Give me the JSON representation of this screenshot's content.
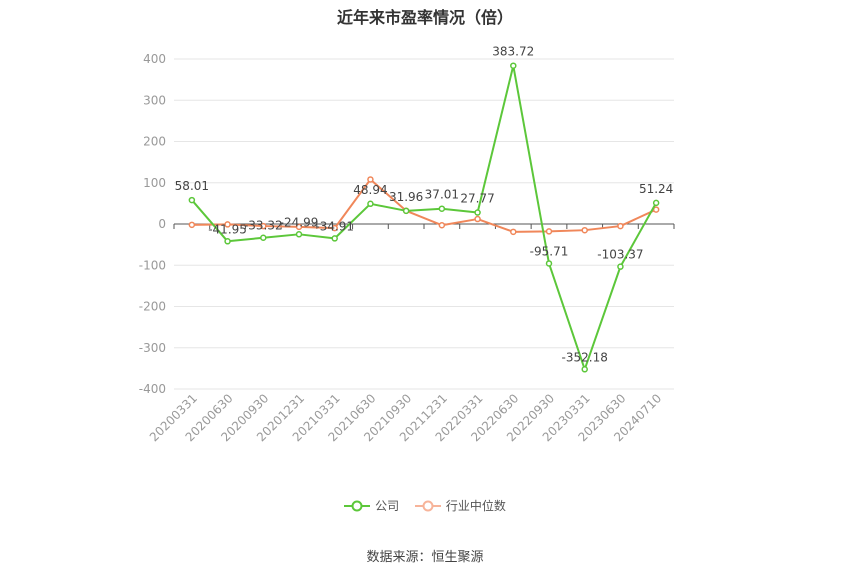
{
  "chart_data": {
    "type": "line",
    "title": "近年来市盈率情况（倍）",
    "categories": [
      "20200331",
      "20200630",
      "20200930",
      "20201231",
      "20210331",
      "20210630",
      "20210930",
      "20211231",
      "20220331",
      "20220630",
      "20220930",
      "20230331",
      "20230630",
      "20240710"
    ],
    "series": [
      {
        "name": "公司",
        "color": "#5cc73a",
        "values": [
          58.01,
          -41.95,
          -33.32,
          -24.99,
          -34.91,
          48.94,
          31.96,
          37.01,
          27.77,
          383.72,
          -95.71,
          -352.18,
          -103.37,
          51.24
        ],
        "labels": [
          "58.01",
          "-41.95",
          "-33.32",
          "-24.99",
          "-34.91",
          "48.94",
          "31.96",
          "37.01",
          "27.77",
          "383.72",
          "-95.71",
          "-352.18",
          "-103.37",
          "51.24"
        ]
      },
      {
        "name": "行业中位数",
        "color": "#f0875a",
        "values": [
          -2,
          -1,
          -5,
          -7,
          -10,
          108,
          32,
          -3,
          12,
          -19,
          -18,
          -15,
          -5,
          35
        ]
      }
    ],
    "ylim": [
      -400,
      400
    ],
    "yticks": [
      -400,
      -300,
      -200,
      -100,
      0,
      100,
      200,
      300,
      400
    ],
    "legend_position": "bottom",
    "grid": true
  },
  "source": "数据来源：恒生聚源"
}
